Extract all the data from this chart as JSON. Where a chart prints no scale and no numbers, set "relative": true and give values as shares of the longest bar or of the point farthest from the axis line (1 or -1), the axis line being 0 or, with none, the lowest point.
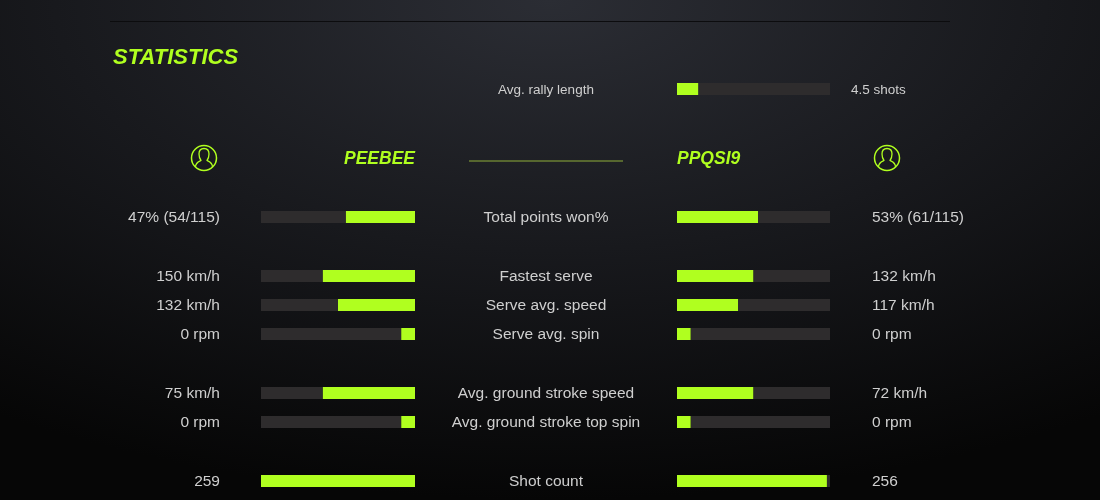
{
  "chart_data": [
    {
      "type": "bar",
      "orientation": "horizontal",
      "relative": true,
      "stacked": true,
      "categories": [
        "Avg. rally length"
      ],
      "series": [
        {
          "color": "#b0ff1f",
          "values": [
            0.14
          ]
        },
        {
          "color": "#2e2c2d",
          "values": [
            0.86
          ]
        }
      ],
      "annotations": [
        "4.5 shots"
      ]
    },
    {
      "type": "bar",
      "orientation": "horizontal",
      "relative": true,
      "stacked": true,
      "title": "STATISTICS",
      "categories": [
        null,
        null,
        null,
        null,
        null,
        null,
        null
      ],
      "series": [
        {
          "name": "PEEBEE",
          "color": "#b0ff1f",
          "values": [
            0.45,
            0.6,
            0.5,
            0.09,
            0.6,
            0.09,
            1
          ]
        },
        {
          "color": "#2e2c2d",
          "values": [
            0.55,
            0.4,
            0.5,
            0.91,
            0.4,
            0.91,
            0
          ]
        }
      ],
      "annotations": [
        "47% (54/115)",
        "150 km/h",
        "132 km/h",
        "0 rpm",
        "75 km/h",
        "0 rpm",
        "259"
      ]
    },
    {
      "type": "bar",
      "orientation": "horizontal",
      "relative": true,
      "stacked": true,
      "categories": [
        "Total points won%",
        "Fastest serve",
        "Serve avg. speed",
        "Serve avg. spin",
        "Avg. ground stroke speed",
        "Avg. ground stroke top spin",
        "Shot count"
      ],
      "series": [
        {
          "name": "PPQSI9",
          "color": "#b0ff1f",
          "values": [
            0.53,
            0.5,
            0.4,
            0.09,
            0.5,
            0.09,
            0.98
          ]
        },
        {
          "color": "#2e2c2d",
          "values": [
            0.47,
            0.5,
            0.6,
            0.91,
            0.5,
            0.91,
            0.02
          ]
        }
      ],
      "annotations": [
        "53% (61/115)",
        "132 km/h",
        "117 km/h",
        "0 rpm",
        "72 km/h",
        "0 rpm",
        "256"
      ]
    }
  ]
}
